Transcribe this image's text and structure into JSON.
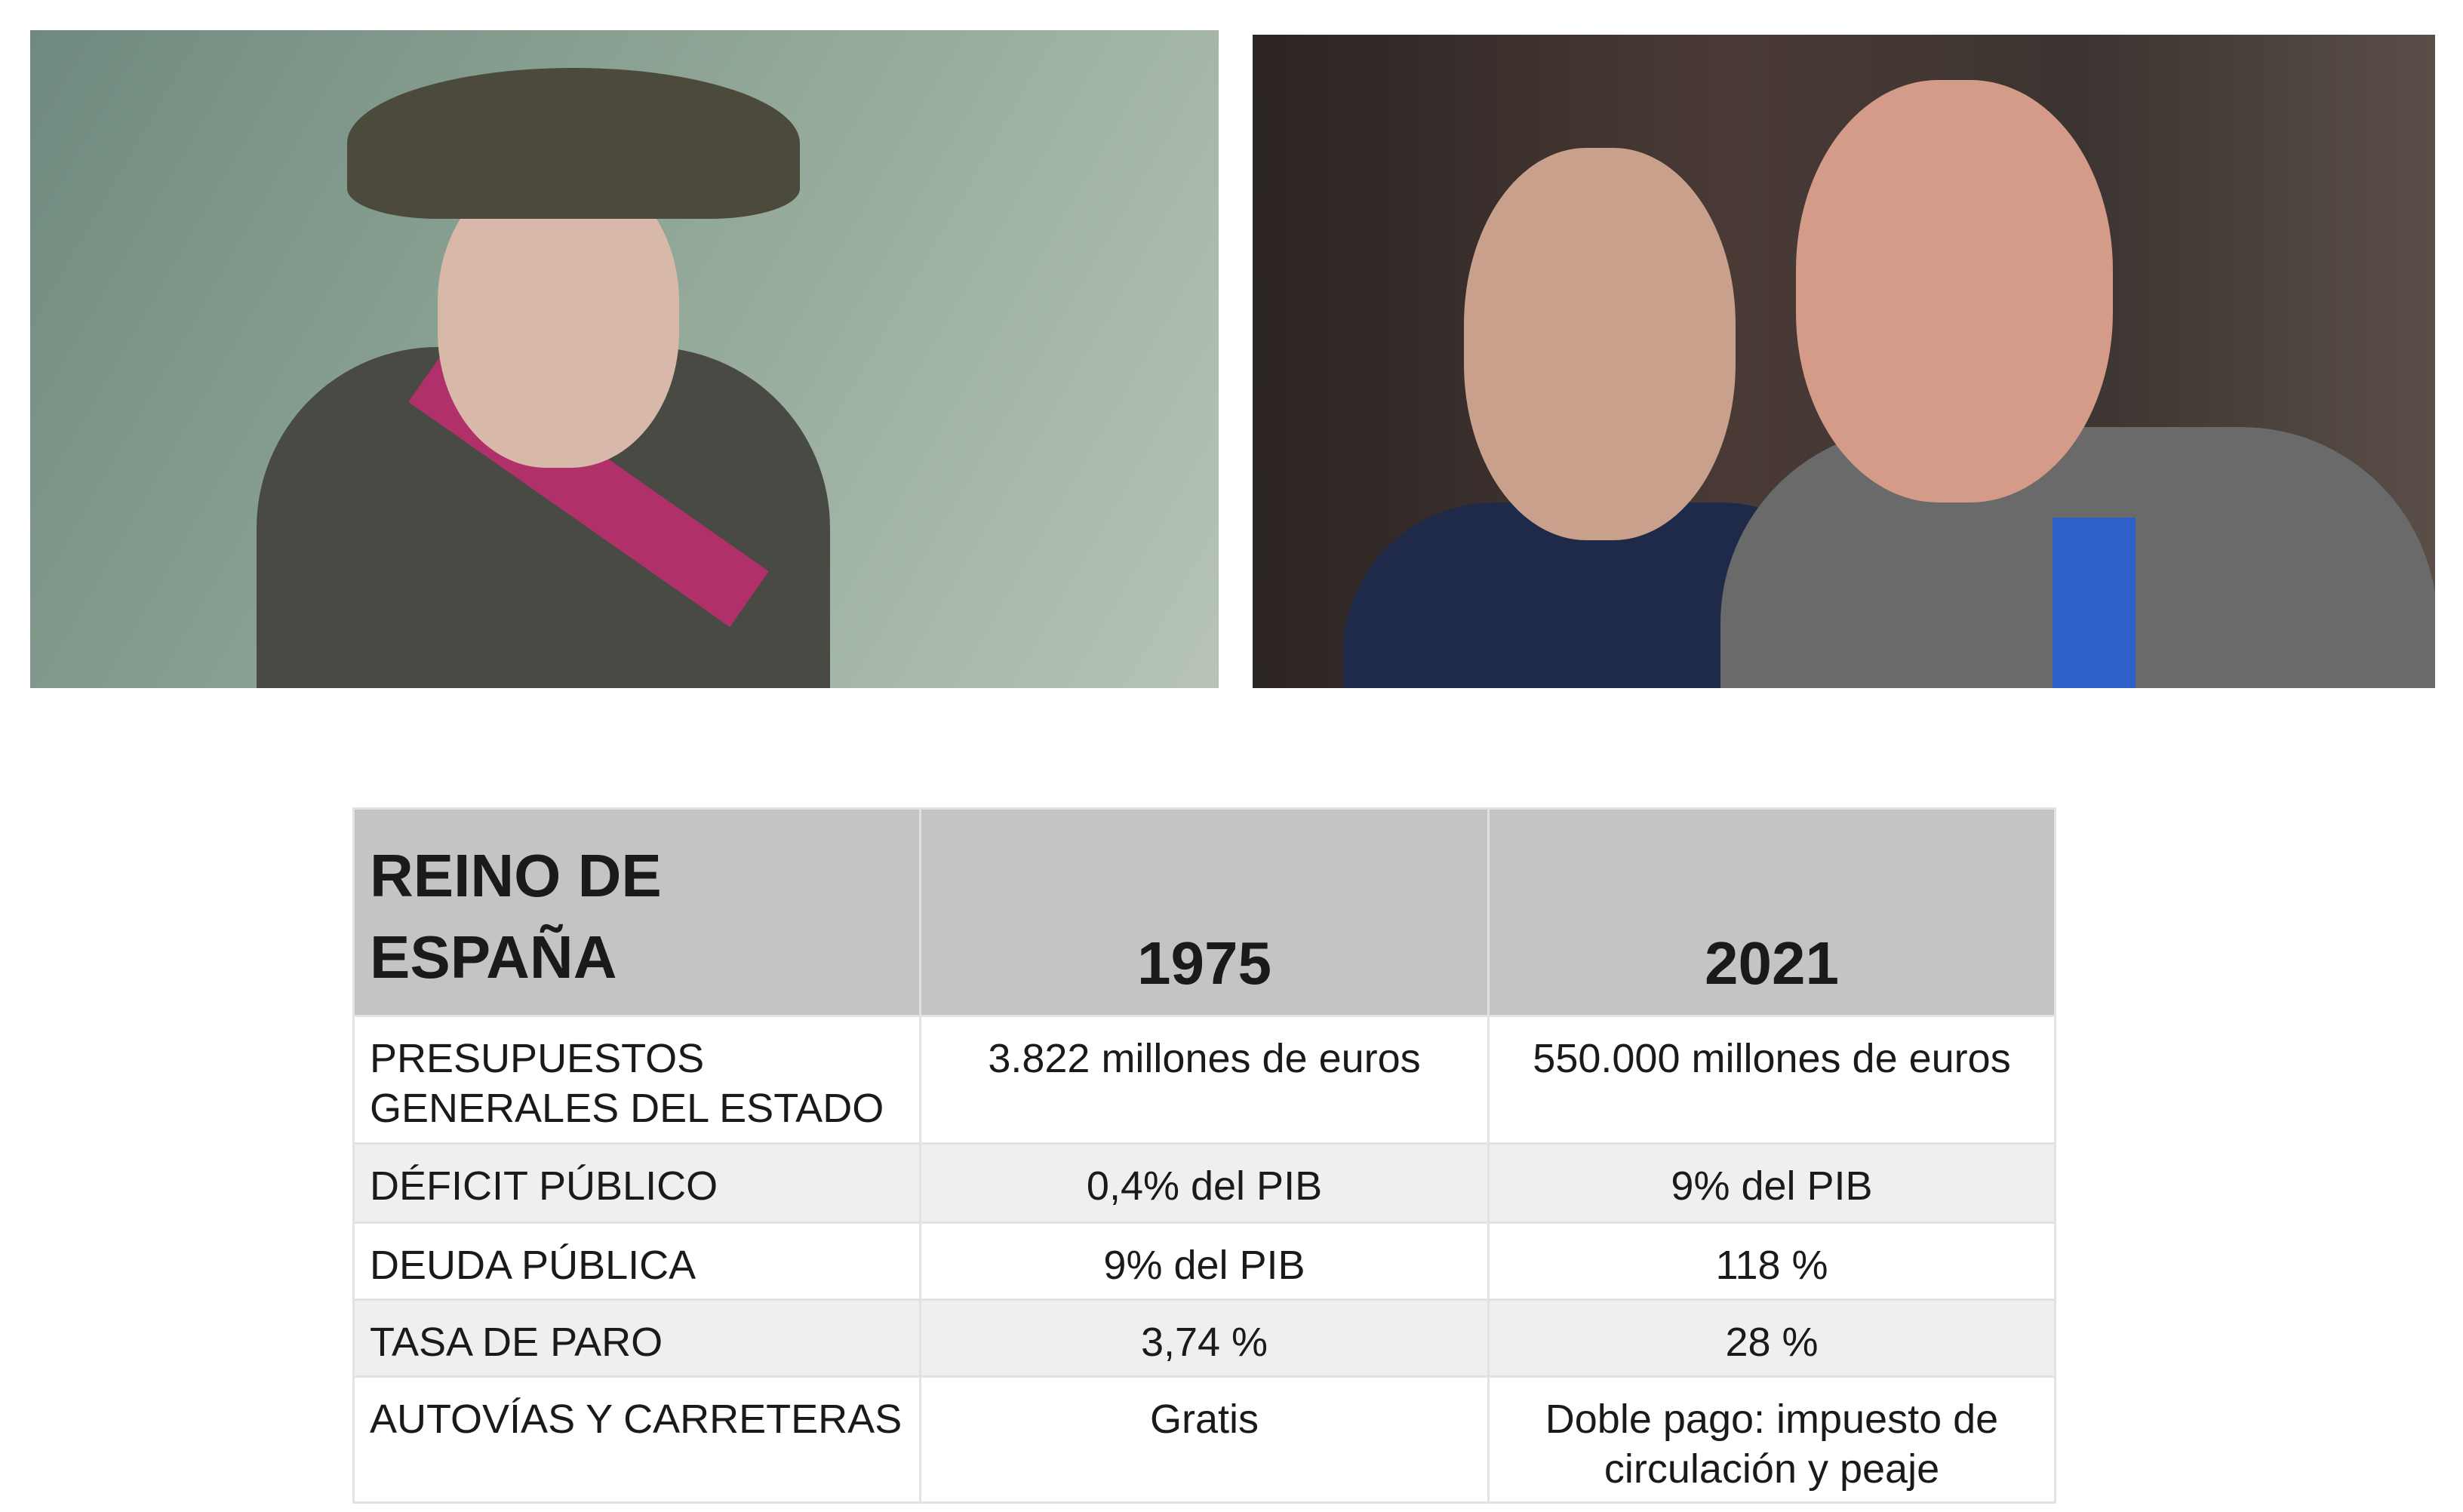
{
  "photos": {
    "left": "photo-military-officer-in-uniform",
    "right": "photo-two-men-in-suits"
  },
  "table": {
    "header": {
      "title": "REINO DE ESPAÑA",
      "col1": "1975",
      "col2": "2021"
    },
    "rows": [
      {
        "label": "PRESUPUESTOS GENERALES DEL ESTADO",
        "v1975": "3.822 millones de euros",
        "v2021": "550.000 millones de euros"
      },
      {
        "label": "DÉFICIT PÚBLICO",
        "v1975": "0,4% del PIB",
        "v2021": "9% del PIB"
      },
      {
        "label": "DEUDA PÚBLICA",
        "v1975": "9% del PIB",
        "v2021": "118 %"
      },
      {
        "label": "TASA DE PARO",
        "v1975": "3,74 %",
        "v2021": "28 %"
      },
      {
        "label": "AUTOVÍAS Y CARRETERAS",
        "v1975": "Gratis",
        "v2021": "Doble pago: impuesto de circulación y peaje"
      }
    ]
  }
}
